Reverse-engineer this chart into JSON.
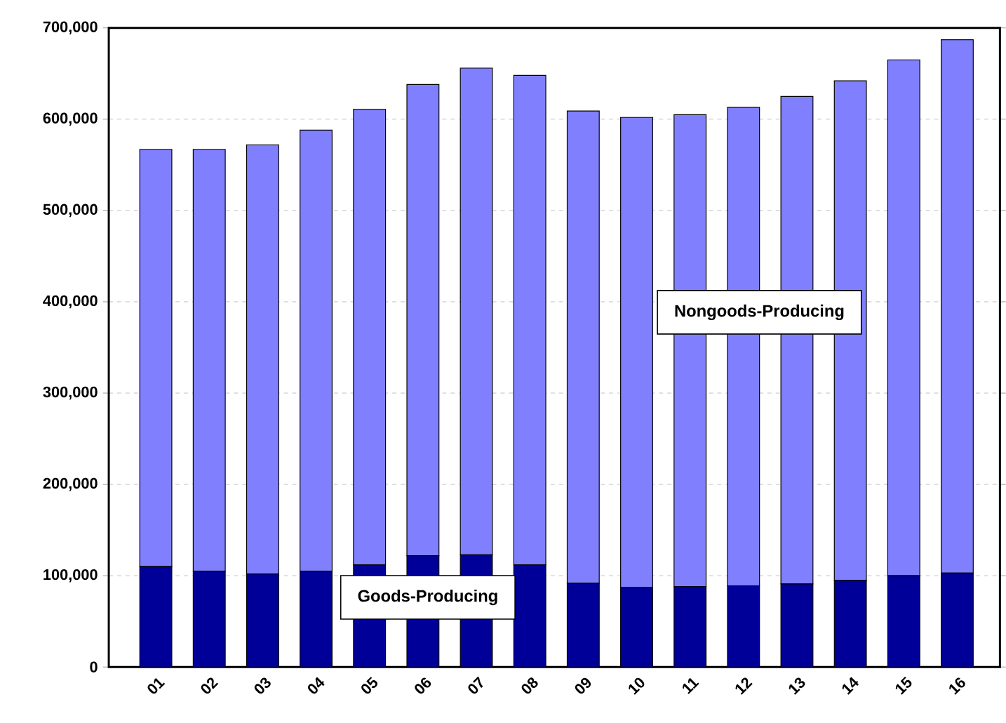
{
  "chart_data": {
    "type": "bar",
    "stacked": true,
    "categories": [
      "01",
      "02",
      "03",
      "04",
      "05",
      "06",
      "07",
      "08",
      "09",
      "10",
      "11",
      "12",
      "13",
      "14",
      "15",
      "16"
    ],
    "series": [
      {
        "name": "Goods-Producing",
        "color": "#000099",
        "values": [
          110000,
          105000,
          102000,
          105000,
          112000,
          122000,
          123000,
          112000,
          92000,
          87000,
          88000,
          89000,
          91000,
          95000,
          100000,
          103000
        ]
      },
      {
        "name": "Nongoods-Producing",
        "color": "#8080ff",
        "values": [
          457000,
          462000,
          470000,
          483000,
          499000,
          516000,
          533000,
          536000,
          517000,
          515000,
          517000,
          524000,
          534000,
          547000,
          565000,
          584000
        ]
      }
    ],
    "ylim": [
      0,
      700000
    ],
    "yticks": [
      {
        "value": 0,
        "label": "0"
      },
      {
        "value": 100000,
        "label": "100,000"
      },
      {
        "value": 200000,
        "label": "200,000"
      },
      {
        "value": 300000,
        "label": "300,000"
      },
      {
        "value": 400000,
        "label": "400,000"
      },
      {
        "value": 500000,
        "label": "500,000"
      },
      {
        "value": 600000,
        "label": "600,000"
      },
      {
        "value": 700000,
        "label": "700,000"
      }
    ],
    "grid": "y"
  }
}
